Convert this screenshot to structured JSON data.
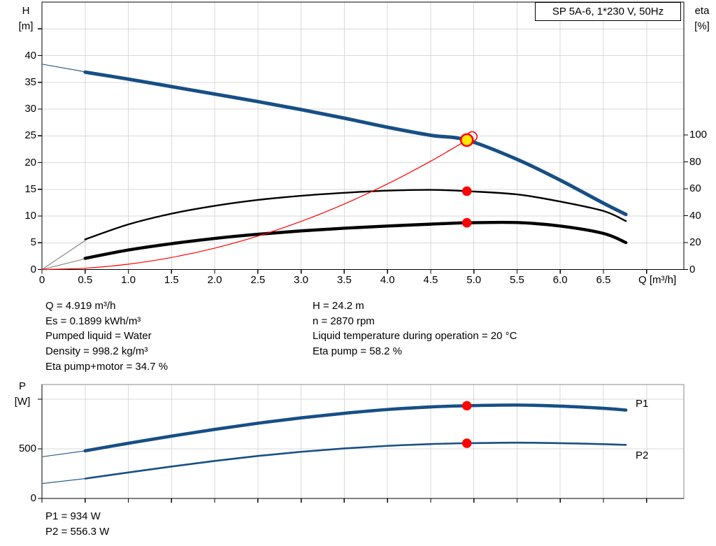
{
  "title_box": "SP 5A-6, 1*230 V, 50Hz",
  "top_chart": {
    "left_axis": {
      "line1": "H",
      "line2": "[m]"
    },
    "right_axis": {
      "line1": "eta",
      "line2": "[%]"
    },
    "x_axis_label": "Q [m³/h]"
  },
  "bottom_chart": {
    "left_axis": {
      "line1": "P",
      "line2": "[W]"
    },
    "series_labels": {
      "p1": "P1",
      "p2": "P2"
    }
  },
  "annotations": {
    "left_block": [
      "Q = 4.919 m³/h",
      "Es = 0.1899 kWh/m³",
      "Pumped liquid = Water",
      "Density = 998.2 kg/m³",
      "Eta pump+motor = 34.7 %"
    ],
    "right_block": [
      "H = 24.2 m",
      "n = 2870 rpm",
      "Liquid temperature during operation = 20 °C",
      "Eta pump = 58.2 %"
    ],
    "power_block": [
      "P1 = 934 W",
      "P2 = 556.3 W"
    ]
  },
  "colors": {
    "curve_blue": "#174f85",
    "label_blue": "#3c6cb4",
    "red": "#ff0000",
    "yellow": "#ffe800",
    "black": "#000000",
    "gray_lead": "#808080",
    "grid": "#d9d9d9"
  },
  "chart_data": [
    {
      "type": "line",
      "title": "SP 5A-6, 1*230 V, 50Hz",
      "xlabel": "Q [m³/h]",
      "ylabel_left": "H [m]",
      "ylabel_right": "eta [%]",
      "xlim": [
        0,
        7.43
      ],
      "ylim_left": [
        0,
        50
      ],
      "ylim_right": [
        0,
        100
      ],
      "grid": true,
      "x_tick_values": [
        0,
        0.5,
        1,
        1.5,
        2,
        2.5,
        3,
        3.5,
        4,
        4.5,
        5,
        5.5,
        6,
        6.5,
        7
      ],
      "x_tick_labels": [
        "0",
        "0.5",
        "1.0",
        "1.5",
        "2.0",
        "2.5",
        "3.0",
        "3.5",
        "4.0",
        "4.5",
        "5.0",
        "5.5",
        "6.0",
        "6.5",
        ""
      ],
      "left_tick_values": [
        0,
        5,
        10,
        15,
        20,
        25,
        30,
        35,
        40,
        45
      ],
      "left_tick_labels": [
        "0",
        "5",
        "10",
        "15",
        "20",
        "25",
        "30",
        "35",
        "40",
        ""
      ],
      "right_tick_values": [
        0,
        20,
        40,
        60,
        80,
        100
      ],
      "right_tick_labels": [
        "0",
        "20",
        "40",
        "60",
        "80",
        "100"
      ],
      "series": [
        {
          "name": "head-curve-lead-in",
          "axis": "left",
          "color": "curve_blue",
          "width": 1.1,
          "x": [
            0,
            0.52
          ],
          "y": [
            38.4,
            36.9
          ]
        },
        {
          "name": "head-curve",
          "axis": "left",
          "color": "curve_blue",
          "width": 5,
          "x": [
            0.5,
            1,
            1.5,
            2,
            2.5,
            3,
            3.5,
            4,
            4.5,
            4.919,
            5.5,
            6,
            6.5,
            6.76
          ],
          "y": [
            36.9,
            35.6,
            34.2,
            32.8,
            31.4,
            29.9,
            28.3,
            26.6,
            25.1,
            24.2,
            20.6,
            16.7,
            12.4,
            10.3
          ]
        },
        {
          "name": "eta-pump-lead-in",
          "axis": "right",
          "color": "gray_lead",
          "width": 1.1,
          "x": [
            0,
            0.52
          ],
          "y": [
            0,
            22.4
          ]
        },
        {
          "name": "eta-pump-curve",
          "axis": "right",
          "color": "black",
          "width": 2.4,
          "x": [
            0.5,
            1,
            1.5,
            2,
            2.5,
            3,
            3.5,
            4,
            4.5,
            4.919,
            5.5,
            6,
            6.5,
            6.76
          ],
          "y": [
            22.4,
            33.5,
            41.5,
            47.3,
            51.7,
            54.8,
            57,
            58.6,
            59.2,
            58.2,
            55.8,
            50.5,
            43.5,
            36
          ]
        },
        {
          "name": "eta-pump-motor-lead-in",
          "axis": "right",
          "color": "gray_lead",
          "width": 1.1,
          "x": [
            0,
            0.52
          ],
          "y": [
            0,
            8.3
          ]
        },
        {
          "name": "eta-pump-motor-curve",
          "axis": "right",
          "color": "black",
          "width": 4.4,
          "x": [
            0.5,
            1,
            1.5,
            2,
            2.5,
            3,
            3.5,
            4,
            4.5,
            4.919,
            5.5,
            6,
            6.5,
            6.76
          ],
          "y": [
            8.3,
            14.5,
            19.2,
            23.1,
            26.2,
            28.7,
            30.7,
            32.3,
            33.7,
            34.7,
            34.9,
            32.3,
            26.8,
            20
          ]
        },
        {
          "name": "system-curve",
          "axis": "left",
          "color": "red",
          "width": 1.2,
          "x": [
            0,
            0.5,
            1,
            1.5,
            2,
            2.5,
            3,
            3.5,
            4,
            4.5,
            4.919,
            4.98
          ],
          "y": [
            0,
            0.25,
            1,
            2.25,
            4,
            6.25,
            9,
            12.25,
            16,
            20.25,
            24.2,
            24.85
          ]
        }
      ],
      "markers": [
        {
          "name": "eta-pump-duty-dot",
          "x": 4.919,
          "y": 58.2,
          "axis": "right",
          "style": "red"
        },
        {
          "name": "eta-pump-motor-duty-dot",
          "x": 4.919,
          "y": 34.7,
          "axis": "right",
          "style": "red"
        },
        {
          "name": "target-point-circle",
          "x": 4.98,
          "y": 24.85,
          "axis": "left",
          "style": "open-red"
        },
        {
          "name": "duty-point",
          "x": 4.919,
          "y": 24.2,
          "axis": "left",
          "style": "yellow"
        }
      ]
    },
    {
      "type": "line",
      "title": "",
      "xlabel": "",
      "ylabel_left": "P [W]",
      "xlim": [
        0,
        7.43
      ],
      "ylim_left": [
        0,
        1148
      ],
      "grid": true,
      "x_tick_values": [
        0,
        0.5,
        1,
        1.5,
        2,
        2.5,
        3,
        3.5,
        4,
        4.5,
        5,
        5.5,
        6,
        6.5,
        7
      ],
      "x_tick_labels": [
        "",
        "",
        "",
        "",
        "",
        "",
        "",
        "",
        "",
        "",
        "",
        "",
        "",
        "",
        ""
      ],
      "left_tick_values": [
        0,
        500,
        1000
      ],
      "left_tick_labels": [
        "0",
        "500",
        ""
      ],
      "series": [
        {
          "name": "p1-lead-in",
          "axis": "left",
          "color": "curve_blue",
          "width": 1.1,
          "x": [
            0,
            0.52
          ],
          "y": [
            420,
            482
          ]
        },
        {
          "name": "p1-curve",
          "axis": "left",
          "color": "curve_blue",
          "width": 4.6,
          "x": [
            0.5,
            1,
            1.5,
            2,
            2.5,
            3,
            3.5,
            4,
            4.5,
            4.919,
            5.5,
            6,
            6.5,
            6.76
          ],
          "y": [
            480,
            556,
            628,
            696,
            758,
            812,
            858,
            896,
            922,
            934,
            941,
            930,
            908,
            890
          ]
        },
        {
          "name": "p2-lead-in",
          "axis": "left",
          "color": "curve_blue",
          "width": 1.1,
          "x": [
            0,
            0.52
          ],
          "y": [
            150,
            202
          ]
        },
        {
          "name": "p2-curve",
          "axis": "left",
          "color": "curve_blue",
          "width": 2.6,
          "x": [
            0.5,
            1,
            1.5,
            2,
            2.5,
            3,
            3.5,
            4,
            4.5,
            4.919,
            5.5,
            6,
            6.5,
            6.76
          ],
          "y": [
            200,
            262,
            322,
            378,
            428,
            470,
            504,
            530,
            548,
            556.3,
            562,
            557,
            547,
            540
          ]
        }
      ],
      "markers": [
        {
          "name": "p1-duty-dot",
          "x": 4.919,
          "y": 934,
          "axis": "left",
          "style": "red"
        },
        {
          "name": "p2-duty-dot",
          "x": 4.919,
          "y": 556.3,
          "axis": "left",
          "style": "red"
        }
      ]
    }
  ]
}
